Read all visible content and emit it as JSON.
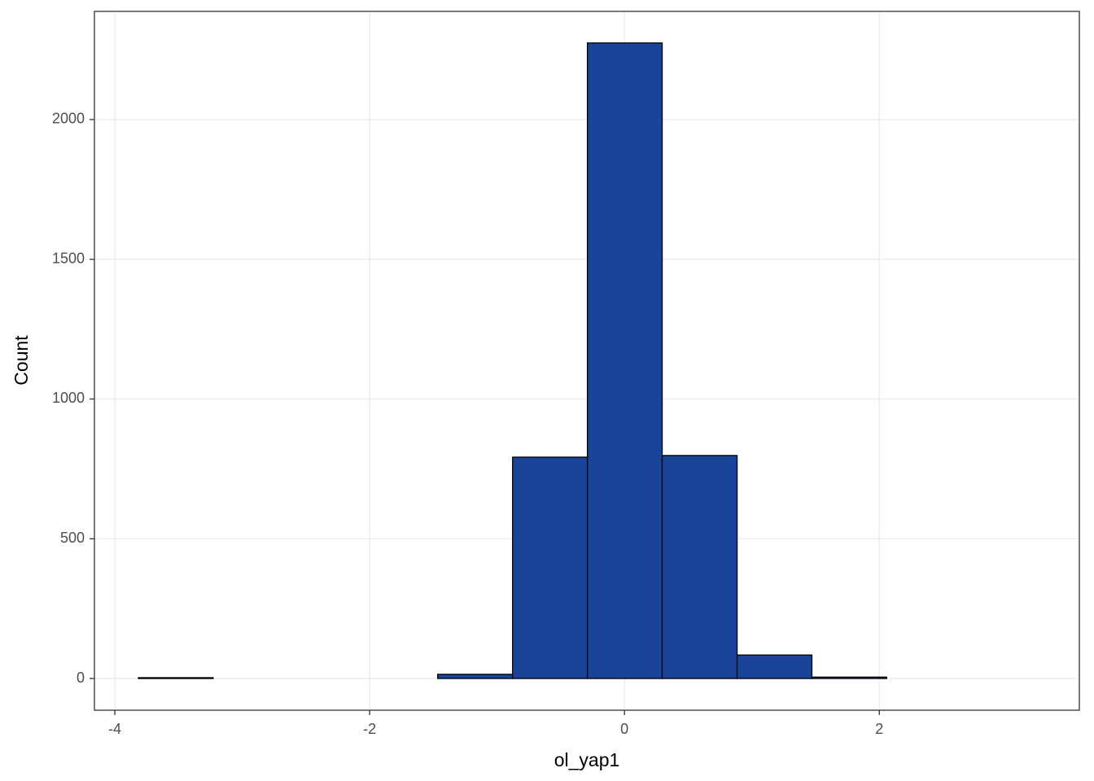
{
  "chart_data": {
    "type": "histogram",
    "x_label": "ol_yap1",
    "y_label": "Count",
    "bins": [
      -3.815,
      -3.228,
      -2.64,
      -2.053,
      -1.466,
      -0.878,
      -0.291,
      0.296,
      0.884,
      1.471,
      2.058,
      2.646,
      3.233
    ],
    "counts": [
      3,
      0,
      0,
      0,
      15,
      792,
      2274,
      798,
      84,
      5,
      0,
      0
    ],
    "color": "#1a4499",
    "edge_color": "#000000",
    "xlim": [
      -4.16,
      3.57
    ],
    "ylim": [
      -113.5,
      2387
    ],
    "xticks": [
      -4,
      -2,
      0,
      2
    ],
    "yticks": [
      0,
      500,
      1000,
      1500,
      2000
    ],
    "grid": true
  }
}
